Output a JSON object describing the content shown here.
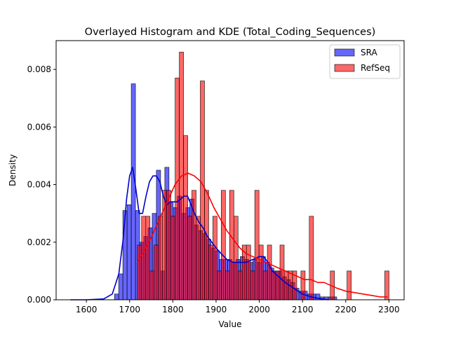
{
  "chart_data": {
    "type": "bar",
    "title": "Overlayed Histogram and KDE (Total_Coding_Sequences)",
    "xlabel": "Value",
    "ylabel": "Density",
    "xlim": [
      1530,
      2335
    ],
    "ylim": [
      0,
      0.009
    ],
    "x_ticks": [
      1600,
      1700,
      1800,
      1900,
      2000,
      2100,
      2200,
      2300
    ],
    "x_tick_labels": [
      "1600",
      "1700",
      "1800",
      "1900",
      "2000",
      "2100",
      "2200",
      "2300"
    ],
    "y_ticks": [
      0,
      0.002,
      0.004,
      0.006,
      0.008
    ],
    "y_tick_labels": [
      "0.000",
      "0.002",
      "0.004",
      "0.006",
      "0.008"
    ],
    "legend_position": "top-right",
    "legend": [
      "SRA",
      "RefSeq"
    ],
    "series": [
      {
        "name": "SRA",
        "color": "#0000ff",
        "bin_start": 1665,
        "bin_width": 9.7,
        "values": [
          0.0002,
          0.0009,
          0.0031,
          0.0033,
          0.0075,
          0.0031,
          0.002,
          0.0022,
          0.0025,
          0.003,
          0.0045,
          0.001,
          0.0046,
          0.0034,
          0.0032,
          0.0036,
          0.003,
          0.0032,
          0.0035,
          0.0026,
          0.0024,
          0.0023,
          0.0021,
          0.0018,
          0.0017,
          0.0014,
          0.0014,
          0.0014,
          0.0013,
          0.0014,
          0.0015,
          0.0014,
          0.0013,
          0.0014,
          0.0013,
          0.0015,
          0.0013,
          0.0011,
          0.001,
          0.001,
          0.0008,
          0.0007,
          0.0006,
          0.0004,
          0.0003,
          0.0003,
          0.0002,
          0.0002,
          0.0002,
          0.0001,
          0.0001,
          0.0001,
          0.0001
        ]
      },
      {
        "name": "RefSeq",
        "color": "#ff0000",
        "bin_start": 1718,
        "bin_width": 9.7,
        "values": [
          0.0019,
          0.0029,
          0.0029,
          0.001,
          0.0019,
          0.0029,
          0.0038,
          0.0038,
          0.0029,
          0.0077,
          0.0086,
          0.0057,
          0.0029,
          0.0038,
          0.0029,
          0.0076,
          0.0038,
          0.0019,
          0.0029,
          0.001,
          0.0038,
          0.001,
          0.0038,
          0.0029,
          0.001,
          0.0019,
          0.0019,
          0.001,
          0.0038,
          0.0019,
          0.001,
          0.0019,
          0.001,
          0.001,
          0.0019,
          0.001,
          0.001,
          0.001,
          0.0,
          0.001,
          0.0,
          0.0029,
          0.0,
          0.0,
          0.0,
          0.0,
          0.001,
          0.0,
          0.0,
          0.0,
          0.001,
          0.0,
          0.0,
          0.0,
          0.0,
          0.0,
          0.0,
          0.0,
          0.0,
          0.001
        ]
      }
    ],
    "kde": [
      {
        "name": "SRA",
        "color": "#0000cc",
        "x": [
          1563,
          1600,
          1640,
          1660,
          1675,
          1685,
          1693,
          1700,
          1707,
          1714,
          1722,
          1730,
          1738,
          1746,
          1754,
          1762,
          1770,
          1778,
          1786,
          1794,
          1802,
          1810,
          1818,
          1826,
          1834,
          1842,
          1850,
          1860,
          1870,
          1880,
          1890,
          1900,
          1912,
          1925,
          1940,
          1955,
          1970,
          1985,
          2000,
          2010,
          2020,
          2030,
          2045,
          2060,
          2080,
          2100,
          2120,
          2140,
          2160
        ],
        "y": [
          0.0,
          0.0,
          3e-05,
          0.0002,
          0.0009,
          0.0021,
          0.0035,
          0.0043,
          0.0046,
          0.0039,
          0.003,
          0.003,
          0.0036,
          0.0041,
          0.0043,
          0.0043,
          0.0041,
          0.0036,
          0.0033,
          0.0034,
          0.0034,
          0.0034,
          0.0035,
          0.0036,
          0.0036,
          0.0033,
          0.003,
          0.0027,
          0.0025,
          0.0022,
          0.002,
          0.0018,
          0.0016,
          0.0014,
          0.0013,
          0.0013,
          0.0013,
          0.0014,
          0.0015,
          0.0015,
          0.0013,
          0.001,
          0.0008,
          0.0006,
          0.0004,
          0.0002,
          0.0001,
          4e-05,
          0.0
        ]
      },
      {
        "name": "RefSeq",
        "color": "#ff0000",
        "x": [
          1718,
          1730,
          1745,
          1760,
          1775,
          1790,
          1805,
          1820,
          1835,
          1850,
          1865,
          1880,
          1895,
          1910,
          1925,
          1940,
          1955,
          1970,
          1985,
          2000,
          2015,
          2030,
          2045,
          2060,
          2075,
          2090,
          2105,
          2120,
          2135,
          2150,
          2165,
          2180,
          2200,
          2220,
          2240,
          2260,
          2280,
          2297
        ],
        "y": [
          0.0013,
          0.0016,
          0.002,
          0.0025,
          0.003,
          0.0035,
          0.004,
          0.0043,
          0.0044,
          0.0043,
          0.0041,
          0.0037,
          0.0032,
          0.0028,
          0.0024,
          0.0021,
          0.0018,
          0.0016,
          0.0015,
          0.0014,
          0.0013,
          0.0012,
          0.0011,
          0.001,
          0.0009,
          0.0008,
          0.0007,
          0.0007,
          0.0006,
          0.0006,
          0.0005,
          0.0004,
          0.0003,
          0.00025,
          0.0002,
          0.00015,
          0.0001,
          0.0001
        ]
      }
    ]
  }
}
